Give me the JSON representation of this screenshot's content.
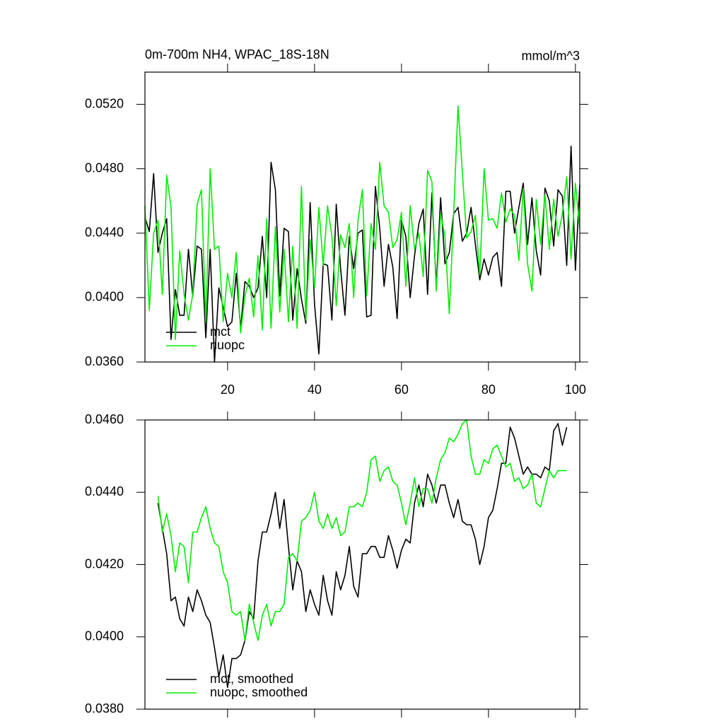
{
  "chart_data": [
    {
      "type": "line",
      "title": "0m-700m NH4, WPAC_18S-18N",
      "units": "mmol/m^3",
      "x": [
        1,
        2,
        3,
        4,
        5,
        6,
        7,
        8,
        9,
        10,
        11,
        12,
        13,
        14,
        15,
        16,
        17,
        18,
        19,
        20,
        21,
        22,
        23,
        24,
        25,
        26,
        27,
        28,
        29,
        30,
        31,
        32,
        33,
        34,
        35,
        36,
        37,
        38,
        39,
        40,
        41,
        42,
        43,
        44,
        45,
        46,
        47,
        48,
        49,
        50,
        51,
        52,
        53,
        54,
        55,
        56,
        57,
        58,
        59,
        60,
        61,
        62,
        63,
        64,
        65,
        66,
        67,
        68,
        69,
        70,
        71,
        72,
        73,
        74,
        75,
        76,
        77,
        78,
        79,
        80,
        81,
        82,
        83,
        84,
        85,
        86,
        87,
        88,
        89,
        90,
        91,
        92,
        93,
        94,
        95,
        96,
        97,
        98,
        99,
        100,
        101
      ],
      "series": [
        {
          "name": "mct",
          "color": "#000000",
          "values": [
            0.045,
            0.0441,
            0.0477,
            0.0428,
            0.044,
            0.0449,
            0.0374,
            0.0405,
            0.0389,
            0.0389,
            0.043,
            0.0401,
            0.0432,
            0.043,
            0.0375,
            0.043,
            0.036,
            0.0406,
            0.0394,
            0.0382,
            0.0385,
            0.0415,
            0.0381,
            0.041,
            0.0407,
            0.04,
            0.0406,
            0.0438,
            0.04,
            0.0484,
            0.0467,
            0.0401,
            0.0443,
            0.0441,
            0.0386,
            0.0418,
            0.0399,
            0.0384,
            0.0459,
            0.0396,
            0.0365,
            0.0421,
            0.042,
            0.0386,
            0.0458,
            0.0418,
            0.0389,
            0.0438,
            0.0418,
            0.044,
            0.0442,
            0.0388,
            0.0389,
            0.0469,
            0.0443,
            0.0407,
            0.0433,
            0.0419,
            0.0387,
            0.0448,
            0.0438,
            0.04,
            0.0426,
            0.0446,
            0.0455,
            0.0402,
            0.0465,
            0.0407,
            0.0462,
            0.0421,
            0.0428,
            0.0452,
            0.0456,
            0.0435,
            0.044,
            0.0456,
            0.0433,
            0.0411,
            0.0424,
            0.0414,
            0.0425,
            0.0428,
            0.0407,
            0.0466,
            0.0466,
            0.044,
            0.0456,
            0.0471,
            0.0433,
            0.0462,
            0.0429,
            0.0414,
            0.0468,
            0.046,
            0.0432,
            0.0467,
            0.0463,
            0.042,
            0.0494,
            0.0417,
            0.047
          ]
        },
        {
          "name": "nuopc",
          "color": "#00ee00",
          "values": [
            0.0457,
            0.0392,
            0.044,
            0.0448,
            0.0402,
            0.0476,
            0.0456,
            0.0374,
            0.0429,
            0.0402,
            0.0386,
            0.0402,
            0.0458,
            0.0467,
            0.0385,
            0.048,
            0.043,
            0.0432,
            0.0385,
            0.0415,
            0.04,
            0.0428,
            0.0378,
            0.0401,
            0.0412,
            0.0388,
            0.0426,
            0.038,
            0.0449,
            0.0381,
            0.0444,
            0.0391,
            0.043,
            0.0385,
            0.0432,
            0.0381,
            0.0469,
            0.0386,
            0.0436,
            0.0406,
            0.0456,
            0.042,
            0.0457,
            0.0438,
            0.0395,
            0.0439,
            0.0431,
            0.0446,
            0.04,
            0.0448,
            0.0467,
            0.0401,
            0.0446,
            0.043,
            0.0484,
            0.0457,
            0.0453,
            0.0431,
            0.0436,
            0.0453,
            0.0407,
            0.0457,
            0.043,
            0.044,
            0.0413,
            0.0479,
            0.0472,
            0.0404,
            0.0452,
            0.0438,
            0.039,
            0.0452,
            0.0519,
            0.0478,
            0.0437,
            0.0441,
            0.0451,
            0.0414,
            0.048,
            0.0448,
            0.0449,
            0.0443,
            0.0465,
            0.0447,
            0.0455,
            0.0451,
            0.0423,
            0.0468,
            0.0421,
            0.0404,
            0.0461,
            0.0433,
            0.0464,
            0.043,
            0.0461,
            0.0438,
            0.0452,
            0.0475,
            0.0424,
            0.0471,
            0.0443
          ]
        }
      ],
      "xlim": [
        1,
        101
      ],
      "xticks": [
        20,
        40,
        60,
        80,
        100
      ],
      "ylim": [
        0.036,
        0.054
      ],
      "yticks": [
        {
          "value": 0.036,
          "label": "0.0360"
        },
        {
          "value": 0.04,
          "label": "0.0400"
        },
        {
          "value": 0.044,
          "label": "0.0440"
        },
        {
          "value": 0.048,
          "label": "0.0480"
        },
        {
          "value": 0.052,
          "label": "0.0520"
        }
      ],
      "legend": "lower left"
    },
    {
      "type": "line",
      "x": [
        4,
        5,
        6,
        7,
        8,
        9,
        10,
        11,
        12,
        13,
        14,
        15,
        16,
        17,
        18,
        19,
        20,
        21,
        22,
        23,
        24,
        25,
        26,
        27,
        28,
        29,
        30,
        31,
        32,
        33,
        34,
        35,
        36,
        37,
        38,
        39,
        40,
        41,
        42,
        43,
        44,
        45,
        46,
        47,
        48,
        49,
        50,
        51,
        52,
        53,
        54,
        55,
        56,
        57,
        58,
        59,
        60,
        61,
        62,
        63,
        64,
        65,
        66,
        67,
        68,
        69,
        70,
        71,
        72,
        73,
        74,
        75,
        76,
        77,
        78,
        79,
        80,
        81,
        82,
        83,
        84,
        85,
        86,
        87,
        88,
        89,
        90,
        91,
        92,
        93,
        94,
        95,
        96,
        97,
        98
      ],
      "series": [
        {
          "name": "mct, smoothed",
          "color": "#000000",
          "values": [
            0.0437,
            0.043,
            0.0423,
            0.041,
            0.0411,
            0.0405,
            0.0403,
            0.0411,
            0.0407,
            0.0413,
            0.041,
            0.0406,
            0.0404,
            0.0397,
            0.0389,
            0.0395,
            0.0386,
            0.0394,
            0.0394,
            0.0395,
            0.0399,
            0.0407,
            0.0405,
            0.0421,
            0.0429,
            0.0429,
            0.0434,
            0.044,
            0.043,
            0.0438,
            0.0425,
            0.0413,
            0.0421,
            0.0418,
            0.0407,
            0.0413,
            0.0409,
            0.0406,
            0.0417,
            0.041,
            0.0406,
            0.0418,
            0.0413,
            0.0417,
            0.0425,
            0.0414,
            0.0411,
            0.0423,
            0.0423,
            0.0425,
            0.0425,
            0.0422,
            0.0422,
            0.0428,
            0.0424,
            0.0419,
            0.0424,
            0.0427,
            0.0426,
            0.0437,
            0.0442,
            0.0436,
            0.0445,
            0.0442,
            0.0437,
            0.0442,
            0.0442,
            0.0437,
            0.0433,
            0.0438,
            0.0432,
            0.0431,
            0.0431,
            0.0427,
            0.042,
            0.0425,
            0.0433,
            0.0435,
            0.0441,
            0.0448,
            0.0448,
            0.0458,
            0.0455,
            0.045,
            0.0445,
            0.0447,
            0.0445,
            0.0445,
            0.0444,
            0.0447,
            0.0446,
            0.0457,
            0.0459,
            0.0453,
            0.0458
          ]
        },
        {
          "name": "nuopc, smoothed",
          "color": "#00ee00",
          "values": [
            0.0439,
            0.0429,
            0.0434,
            0.0428,
            0.0418,
            0.0426,
            0.0425,
            0.0415,
            0.0429,
            0.0429,
            0.0433,
            0.0436,
            0.043,
            0.0426,
            0.0425,
            0.0418,
            0.0415,
            0.0407,
            0.0406,
            0.0407,
            0.0399,
            0.0409,
            0.0404,
            0.0399,
            0.0406,
            0.0409,
            0.0403,
            0.0407,
            0.0407,
            0.0409,
            0.0422,
            0.0423,
            0.0421,
            0.0432,
            0.0433,
            0.0435,
            0.044,
            0.0432,
            0.043,
            0.0434,
            0.043,
            0.0433,
            0.0428,
            0.0429,
            0.0436,
            0.0436,
            0.0437,
            0.0436,
            0.044,
            0.0449,
            0.045,
            0.0443,
            0.0446,
            0.0447,
            0.0443,
            0.0442,
            0.0437,
            0.0431,
            0.0437,
            0.0444,
            0.0436,
            0.0441,
            0.0441,
            0.0437,
            0.0444,
            0.0449,
            0.0451,
            0.0455,
            0.0454,
            0.0456,
            0.0459,
            0.046,
            0.045,
            0.0445,
            0.0445,
            0.0449,
            0.0448,
            0.0452,
            0.0453,
            0.045,
            0.0447,
            0.0448,
            0.0443,
            0.0444,
            0.0441,
            0.0442,
            0.0445,
            0.0437,
            0.0436,
            0.0441,
            0.0446,
            0.0444,
            0.0446,
            0.0446,
            0.0446
          ]
        }
      ],
      "xlim": [
        1,
        101
      ],
      "xticks": [
        20,
        40,
        60,
        80,
        100
      ],
      "ylim": [
        0.038,
        0.046
      ],
      "yticks": [
        {
          "value": 0.038,
          "label": "0.0380"
        },
        {
          "value": 0.04,
          "label": "0.0400"
        },
        {
          "value": 0.042,
          "label": "0.0420"
        },
        {
          "value": 0.044,
          "label": "0.0440"
        },
        {
          "value": 0.046,
          "label": "0.0460"
        }
      ],
      "legend": "lower left"
    }
  ]
}
